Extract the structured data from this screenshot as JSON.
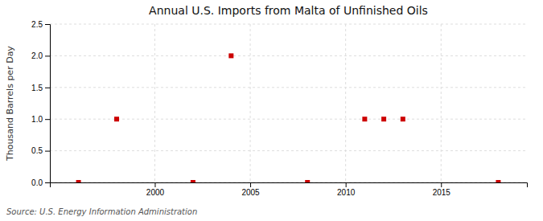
{
  "chart_data": {
    "type": "scatter",
    "title": "Annual U.S. Imports from Malta of Unfinished Oils",
    "ylabel": "Thousand Barrels per Day",
    "source": "Source: U.S. Energy Information Administration",
    "x": [
      1996,
      1998,
      2002,
      2004,
      2008,
      2011,
      2012,
      2013,
      2018
    ],
    "values": [
      0,
      1.0,
      0,
      2.0,
      0,
      1.0,
      1.0,
      1.0,
      0
    ],
    "color": "#cc0000",
    "marker": "square",
    "xlim": [
      1994.5,
      2019.5
    ],
    "ylim": [
      0,
      2.5
    ],
    "xticks": [
      2000,
      2005,
      2010,
      2015
    ],
    "yticks": [
      {
        "value": 0,
        "label": "0.0"
      },
      0.5,
      {
        "value": 1,
        "label": "1.0"
      },
      1.5,
      {
        "value": 2,
        "label": "2.0"
      },
      2.5
    ],
    "grid": true
  }
}
